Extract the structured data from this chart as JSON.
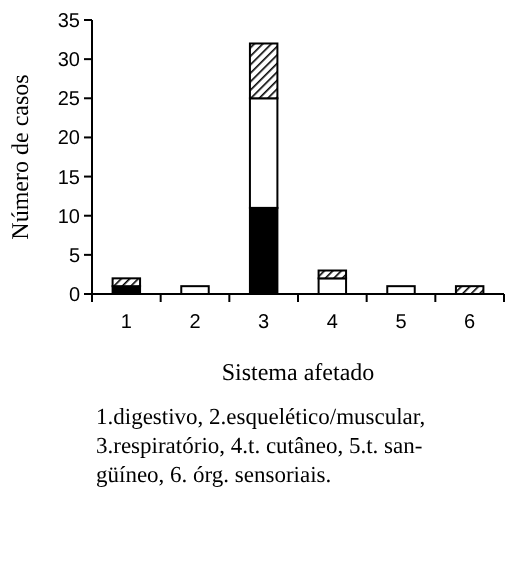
{
  "chart_data": {
    "type": "bar",
    "stacked": true,
    "xlabel": "Sistema afetado",
    "ylabel": "Número de casos",
    "categories": [
      "1",
      "2",
      "3",
      "4",
      "5",
      "6"
    ],
    "series": [
      {
        "color": "#000000",
        "values": [
          1,
          0,
          11,
          0,
          0,
          0
        ]
      },
      {
        "color": "#ffffff",
        "values": [
          0,
          1,
          14,
          2,
          1,
          0
        ]
      },
      {
        "color": "#000000",
        "values": [
          1,
          0,
          7,
          1,
          0,
          1
        ]
      }
    ],
    "ylim": [
      0,
      35
    ],
    "yticks": [
      0,
      5,
      10,
      15,
      20,
      25,
      30,
      35
    ],
    "grid": false,
    "annotations": [
      "1.digestivo, 2.esquelético/muscular,\n3.respiratório, 4.t. cutâneo, 5.t. san-\ngüíneo, 6. órg. sensoriais."
    ]
  }
}
